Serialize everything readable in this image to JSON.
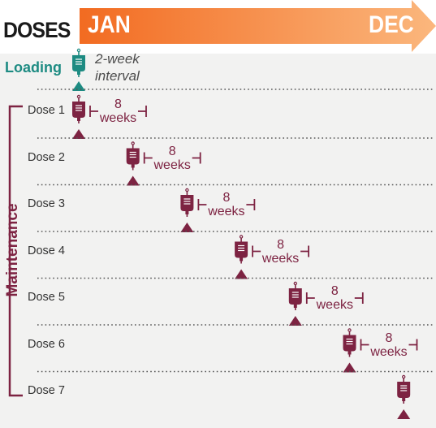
{
  "header": {
    "title": "DOSES",
    "start_month": "JAN",
    "end_month": "DEC",
    "arrow_color_start": "#f26b21",
    "arrow_color_end": "#fbb77d"
  },
  "loading": {
    "label": "Loading",
    "interval_line1": "2-week",
    "interval_line2": "interval",
    "color": "#1d8b82"
  },
  "maintenance": {
    "label": "Maintenance",
    "color": "#7d2342",
    "doses": [
      {
        "label": "Dose 1",
        "gap_weeks": "8",
        "gap_unit": "weeks"
      },
      {
        "label": "Dose 2",
        "gap_weeks": "8",
        "gap_unit": "weeks"
      },
      {
        "label": "Dose 3",
        "gap_weeks": "8",
        "gap_unit": "weeks"
      },
      {
        "label": "Dose 4",
        "gap_weeks": "8",
        "gap_unit": "weeks"
      },
      {
        "label": "Dose 5",
        "gap_weeks": "8",
        "gap_unit": "weeks"
      },
      {
        "label": "Dose 6",
        "gap_weeks": "8",
        "gap_unit": "weeks"
      },
      {
        "label": "Dose 7"
      }
    ]
  }
}
